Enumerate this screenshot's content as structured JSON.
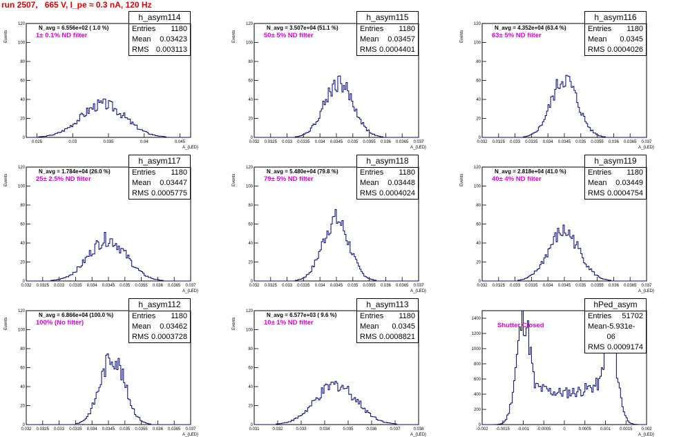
{
  "header": {
    "title": "run 2507,   665 V, I_pe ≈ 0.3 nA, 120 Hz"
  },
  "chart_data": [
    {
      "type": "histogram",
      "name": "h_asym114",
      "n_avg": "N_avg = 6.556e+02 ( 1.0 %)",
      "filter": "1± 0.1% ND filter",
      "stats": {
        "Entries": "1180",
        "Mean": "0.03423",
        "RMS": "0.003113"
      },
      "xlabel": "A_{LED}",
      "ylabel": "Events",
      "xlim": [
        0.0235,
        0.0465
      ],
      "ylim": [
        0,
        120
      ],
      "xticks": [
        "0.025",
        "0.03",
        "0.035",
        "0.04",
        "0.045"
      ],
      "xtick_vals": [
        0.025,
        0.03,
        0.035,
        0.04,
        0.045
      ],
      "yticks": [
        0,
        20,
        40,
        60,
        80,
        100,
        120
      ],
      "mean": 0.03423,
      "rms": 0.003113,
      "peak": 35,
      "kind": "normal"
    },
    {
      "type": "histogram",
      "name": "h_asym115",
      "n_avg": "N_avg = 3.507e+04 (51.1 %)",
      "filter": "50± 5% ND filter",
      "stats": {
        "Entries": "1180",
        "Mean": "0.03457",
        "RMS": "0.0004401"
      },
      "xlabel": "A_{LED}",
      "ylabel": "Events",
      "xlim": [
        0.032,
        0.037
      ],
      "ylim": [
        0,
        120
      ],
      "xticks": [
        "0.032",
        "0.0325",
        "0.033",
        "0.0335",
        "0.034",
        "0.0345",
        "0.035",
        "0.0355",
        "0.036",
        "0.0365",
        "0.037"
      ],
      "xtick_vals": [
        0.032,
        0.0325,
        0.033,
        0.0335,
        0.034,
        0.0345,
        0.035,
        0.0355,
        0.036,
        0.0365,
        0.037
      ],
      "yticks": [
        0,
        20,
        40,
        60,
        80,
        100,
        120
      ],
      "mean": 0.03457,
      "rms": 0.0004401,
      "peak": 58,
      "kind": "normal"
    },
    {
      "type": "histogram",
      "name": "h_asym116",
      "n_avg": "N_avg = 4.352e+04 (63.4 %)",
      "filter": "63± 5% ND filter",
      "stats": {
        "Entries": "1180",
        "Mean": "0.0345",
        "RMS": "0.0004026"
      },
      "xlabel": "A_{LED}",
      "ylabel": "Events",
      "xlim": [
        0.032,
        0.037
      ],
      "ylim": [
        0,
        120
      ],
      "xticks": [
        "0.032",
        "0.0325",
        "0.033",
        "0.0335",
        "0.034",
        "0.0345",
        "0.035",
        "0.0355",
        "0.036",
        "0.0365",
        "0.037"
      ],
      "xtick_vals": [
        0.032,
        0.0325,
        0.033,
        0.0335,
        0.034,
        0.0345,
        0.035,
        0.0355,
        0.036,
        0.0365,
        0.037
      ],
      "yticks": [
        0,
        20,
        40,
        60,
        80,
        100,
        120
      ],
      "mean": 0.0345,
      "rms": 0.0004026,
      "peak": 62,
      "kind": "normal"
    },
    {
      "type": "histogram",
      "name": "h_asym117",
      "n_avg": "N_avg = 1.784e+04 (26.0 %)",
      "filter": "25± 2.5% ND filter",
      "stats": {
        "Entries": "1180",
        "Mean": "0.03447",
        "RMS": "0.0005775"
      },
      "xlabel": "A_{LED}",
      "ylabel": "Events",
      "xlim": [
        0.032,
        0.037
      ],
      "ylim": [
        0,
        120
      ],
      "xticks": [
        "0.032",
        "0.0325",
        "0.033",
        "0.0335",
        "0.034",
        "0.0345",
        "0.035",
        "0.0355",
        "0.036",
        "0.0365",
        "0.037"
      ],
      "xtick_vals": [
        0.032,
        0.0325,
        0.033,
        0.0335,
        0.034,
        0.0345,
        0.035,
        0.0355,
        0.036,
        0.0365,
        0.037
      ],
      "yticks": [
        0,
        20,
        40,
        60,
        80,
        100,
        120
      ],
      "mean": 0.03447,
      "rms": 0.0005775,
      "peak": 44,
      "kind": "normal"
    },
    {
      "type": "histogram",
      "name": "h_asym118",
      "n_avg": "N_avg = 5.480e+04 (79.8 %)",
      "filter": "79± 5% ND filter",
      "stats": {
        "Entries": "1180",
        "Mean": "0.03448",
        "RMS": "0.0004024"
      },
      "xlabel": "A_{LED}",
      "ylabel": "Events",
      "xlim": [
        0.032,
        0.037
      ],
      "ylim": [
        0,
        120
      ],
      "xticks": [
        "0.032",
        "0.0325",
        "0.033",
        "0.0335",
        "0.034",
        "0.0345",
        "0.035",
        "0.0355",
        "0.036",
        "0.0365",
        "0.037"
      ],
      "xtick_vals": [
        0.032,
        0.0325,
        0.033,
        0.0335,
        0.034,
        0.0345,
        0.035,
        0.0355,
        0.036,
        0.0365,
        0.037
      ],
      "yticks": [
        0,
        20,
        40,
        60,
        80,
        100,
        120
      ],
      "mean": 0.03448,
      "rms": 0.0004024,
      "peak": 65,
      "kind": "normal"
    },
    {
      "type": "histogram",
      "name": "h_asym119",
      "n_avg": "N_avg = 2.818e+04 (41.0 %)",
      "filter": "40± 4% ND filter",
      "stats": {
        "Entries": "1180",
        "Mean": "0.03449",
        "RMS": "0.0004754"
      },
      "xlabel": "A_{LED}",
      "ylabel": "Events",
      "xlim": [
        0.032,
        0.037
      ],
      "ylim": [
        0,
        120
      ],
      "xticks": [
        "0.032",
        "0.0325",
        "0.033",
        "0.0335",
        "0.034",
        "0.0345",
        "0.035",
        "0.0355",
        "0.036",
        "0.0365",
        "0.037"
      ],
      "xtick_vals": [
        0.032,
        0.0325,
        0.033,
        0.0335,
        0.034,
        0.0345,
        0.035,
        0.0355,
        0.036,
        0.0365,
        0.037
      ],
      "yticks": [
        0,
        20,
        40,
        60,
        80,
        100,
        120
      ],
      "mean": 0.03449,
      "rms": 0.0004754,
      "peak": 52,
      "kind": "normal"
    },
    {
      "type": "histogram",
      "name": "h_asym112",
      "n_avg": "N_avg = 6.866e+04 (100.0 %)",
      "filter": "100% (No filter)",
      "stats": {
        "Entries": "1180",
        "Mean": "0.03462",
        "RMS": "0.0003728"
      },
      "xlabel": "A_{LED}",
      "ylabel": "Events",
      "xlim": [
        0.032,
        0.037
      ],
      "ylim": [
        0,
        120
      ],
      "xticks": [
        "0.032",
        "0.0325",
        "0.033",
        "0.0335",
        "0.034",
        "0.0345",
        "0.035",
        "0.0355",
        "0.036",
        "0.0365",
        "0.037"
      ],
      "xtick_vals": [
        0.032,
        0.0325,
        0.033,
        0.0335,
        0.034,
        0.0345,
        0.035,
        0.0355,
        0.036,
        0.0365,
        0.037
      ],
      "yticks": [
        0,
        20,
        40,
        60,
        80,
        100,
        120
      ],
      "mean": 0.03462,
      "rms": 0.0003728,
      "peak": 72,
      "kind": "normal"
    },
    {
      "type": "histogram",
      "name": "h_asym113",
      "n_avg": "N_avg = 6.577e+03 ( 9.6 %)",
      "filter": "10± 1% ND filter",
      "stats": {
        "Entries": "1180",
        "Mean": "0.0345",
        "RMS": "0.0008821"
      },
      "xlabel": "A_{LED}",
      "ylabel": "Events",
      "xlim": [
        0.031,
        0.038
      ],
      "ylim": [
        0,
        120
      ],
      "xticks": [
        "0.031",
        "0.032",
        "0.033",
        "0.034",
        "0.035",
        "0.036",
        "0.037",
        "0.038"
      ],
      "xtick_vals": [
        0.031,
        0.032,
        0.033,
        0.034,
        0.035,
        0.036,
        0.037,
        0.038
      ],
      "yticks": [
        0,
        20,
        40,
        60,
        80,
        100,
        120
      ],
      "mean": 0.0345,
      "rms": 0.0008821,
      "peak": 42,
      "kind": "normal"
    },
    {
      "type": "histogram",
      "name": "hPed_asym",
      "n_avg": "",
      "filter": "Shutter Closed",
      "stats": {
        "Entries": "51702",
        "Mean": "-5.931e-06",
        "RMS": "0.0009174"
      },
      "xlabel": "A_{LED}",
      "ylabel": "",
      "xlim": [
        -0.002,
        0.002
      ],
      "ylim": [
        0,
        1500
      ],
      "xticks": [
        "-0.002",
        "-0.0015",
        "-0.001",
        "-0.0005",
        "0",
        "0.0005",
        "0.001",
        "0.0015",
        "0.002"
      ],
      "xtick_vals": [
        -0.002,
        -0.0015,
        -0.001,
        -0.0005,
        0,
        0.0005,
        0.001,
        0.0015,
        0.002
      ],
      "yticks": [
        0,
        200,
        400,
        600,
        800,
        1000,
        1200,
        1400
      ],
      "mean": -5.931e-06,
      "rms": 0.0009174,
      "peak": 1450,
      "kind": "pedestal"
    }
  ]
}
